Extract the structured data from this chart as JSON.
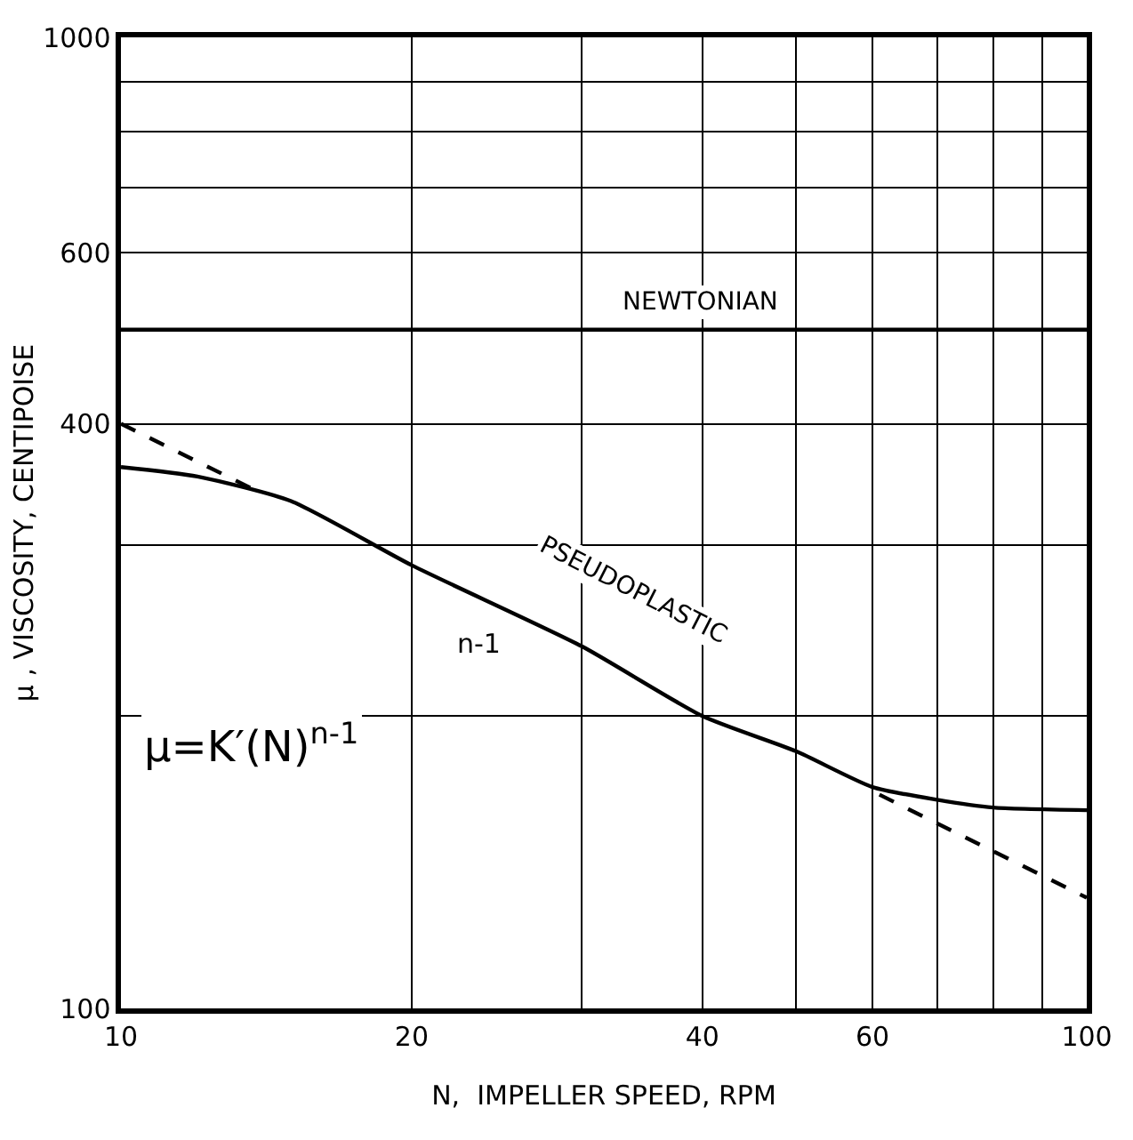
{
  "chart_data": {
    "type": "line",
    "xlabel": "N,  IMPELLER SPEED, RPM",
    "ylabel": "μ , VISCOSITY, CENTIPOISE",
    "log": "xy",
    "grid": true,
    "marker": "none",
    "xlim": [
      10,
      100
    ],
    "ylim": [
      100,
      1000
    ],
    "xticks": [
      10,
      20,
      {
        "value": 30,
        "label": null
      },
      40,
      {
        "value": 50,
        "label": null
      },
      60,
      {
        "value": 70,
        "label": null
      },
      {
        "value": 80,
        "label": null
      },
      {
        "value": 90,
        "label": null
      },
      100
    ],
    "yticks": [
      100,
      {
        "value": 200,
        "label": null
      },
      {
        "value": 300,
        "label": null
      },
      400,
      600,
      {
        "value": 700,
        "label": null
      },
      {
        "value": 800,
        "label": null
      },
      {
        "value": 900,
        "label": null
      },
      1000
    ],
    "series": [
      {
        "color": "#000000",
        "line_style": "solid",
        "x": [
          10,
          100
        ],
        "values": [
          500,
          500
        ]
      },
      {
        "color": "#000000",
        "line_style": "solid",
        "x": [
          10,
          12,
          15,
          20,
          30,
          40,
          50,
          60,
          70,
          80,
          100
        ],
        "values": [
          361,
          353,
          333,
          286,
          236,
          200,
          184,
          169,
          164,
          161,
          160
        ]
      },
      {
        "color": "#000000",
        "line_style": "dashed",
        "x": [
          10,
          14,
          40,
          61,
          100
        ],
        "values": [
          400,
          339,
          null,
          166,
          130
        ]
      }
    ],
    "annotations": [
      "NEWTONIAN",
      "PSEUDOPLASTIC",
      "n-1",
      "μ=K′(N)$^{n-1}$"
    ]
  }
}
